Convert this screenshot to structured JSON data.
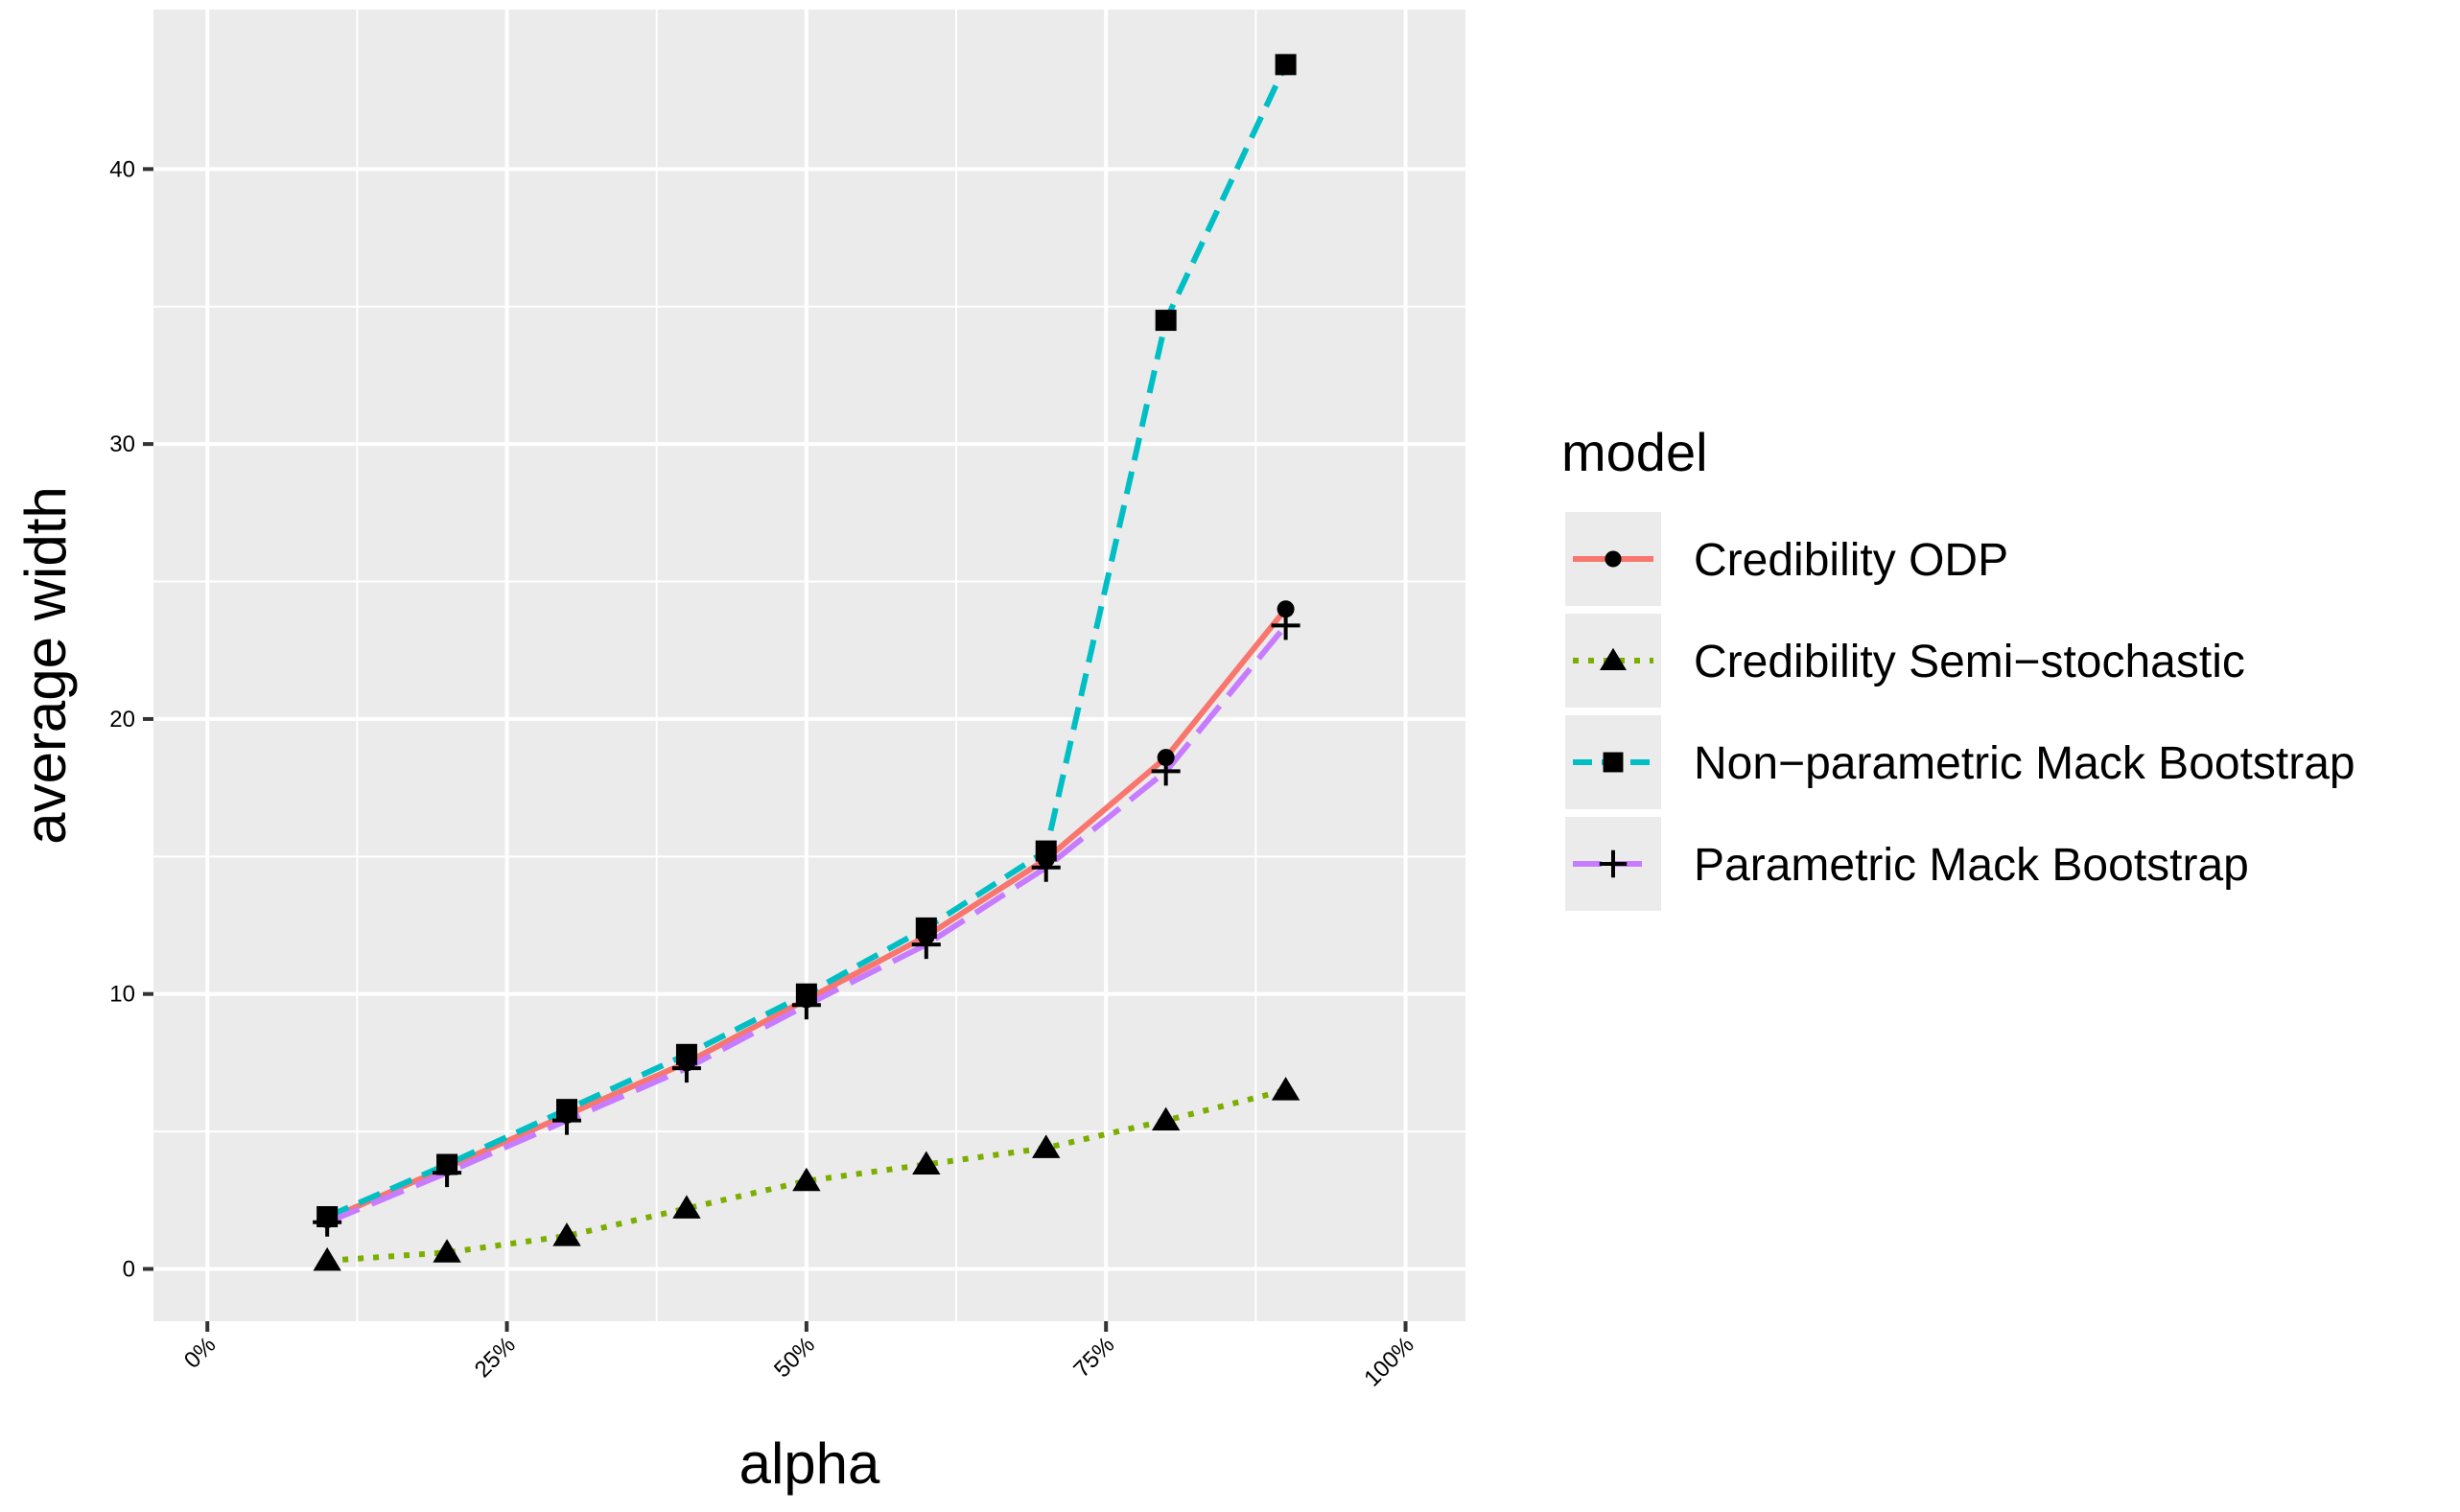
{
  "chart_data": {
    "type": "line",
    "title": "",
    "xlabel": "alpha",
    "ylabel": "average width",
    "x": [
      0.1,
      0.2,
      0.3,
      0.4,
      0.5,
      0.6,
      0.7,
      0.8,
      0.9
    ],
    "xlim": [
      -0.045,
      1.05
    ],
    "ylim": [
      -1.9,
      45.8
    ],
    "x_ticks": [
      0,
      0.25,
      0.5,
      0.75,
      1.0
    ],
    "x_tick_labels": [
      "0%",
      "25%",
      "50%",
      "75%",
      "100%"
    ],
    "y_ticks": [
      0,
      10,
      20,
      30,
      40
    ],
    "y_tick_labels": [
      "0",
      "10",
      "20",
      "30",
      "40"
    ],
    "grid": true,
    "legend_title": "model",
    "legend_position": "right",
    "series": [
      {
        "name": "Credibility ODP",
        "values": [
          1.8,
          3.7,
          5.6,
          7.5,
          9.8,
          12.1,
          14.9,
          18.6,
          24.0
        ],
        "color": "#F8766D",
        "dash": "solid",
        "marker": "circle"
      },
      {
        "name": "Credibility Semi-stochastic",
        "values": [
          0.3,
          0.6,
          1.2,
          2.2,
          3.2,
          3.8,
          4.4,
          5.4,
          6.5
        ],
        "color": "#7CAE00",
        "dash": "dotted",
        "marker": "triangle"
      },
      {
        "name": "Non-parametric Mack Bootstrap",
        "values": [
          1.9,
          3.8,
          5.8,
          7.8,
          10.0,
          12.4,
          15.2,
          34.5,
          43.8
        ],
        "color": "#00BFC4",
        "dash": "dashed",
        "marker": "square"
      },
      {
        "name": "Parametric Mack Bootstrap",
        "values": [
          1.7,
          3.5,
          5.4,
          7.3,
          9.6,
          11.8,
          14.6,
          18.1,
          23.4
        ],
        "color": "#C77CFF",
        "dash": "longdash",
        "marker": "plus"
      }
    ]
  },
  "legend_items": [
    "Credibility ODP",
    "Credibility Semi−stochastic",
    "Non−parametric Mack Bootstrap",
    "Parametric Mack Bootstrap"
  ]
}
